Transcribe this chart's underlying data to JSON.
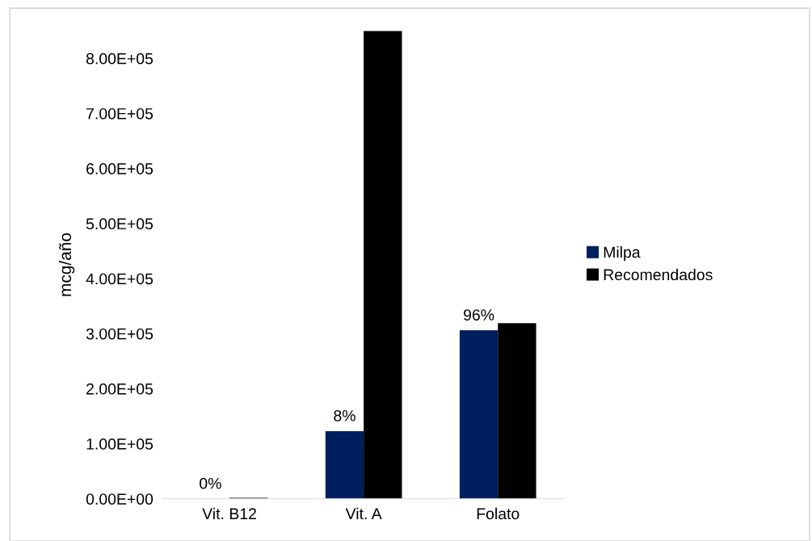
{
  "chart_data": {
    "type": "bar",
    "ylabel": "mcg/año",
    "categories": [
      "Vit. B12",
      "Vit. A",
      "Folato"
    ],
    "series": [
      {
        "name": "Milpa",
        "color": "#001f5f",
        "values": [
          0,
          123000,
          306000
        ]
      },
      {
        "name": "Recomendados",
        "color": "#000000",
        "values": [
          2000,
          850000,
          319000
        ]
      }
    ],
    "ylim": [
      0,
      850000
    ],
    "yticks": [
      {
        "value": 0,
        "label": "0.00E+00"
      },
      {
        "value": 100000,
        "label": "1.00E+05"
      },
      {
        "value": 200000,
        "label": "2.00E+05"
      },
      {
        "value": 300000,
        "label": "3.00E+05"
      },
      {
        "value": 400000,
        "label": "4.00E+05"
      },
      {
        "value": 500000,
        "label": "5.00E+05"
      },
      {
        "value": 600000,
        "label": "6.00E+05"
      },
      {
        "value": 700000,
        "label": "7.00E+05"
      },
      {
        "value": 800000,
        "label": "8.00E+05"
      }
    ],
    "annotations": [
      {
        "text": "0%",
        "x": "Vit. B12",
        "y": 0
      },
      {
        "text": "8%",
        "x": "Vit. A",
        "y": 123000
      },
      {
        "text": "96%",
        "x": "Folato",
        "y": 306000
      }
    ],
    "grid": false,
    "legend": "right"
  }
}
